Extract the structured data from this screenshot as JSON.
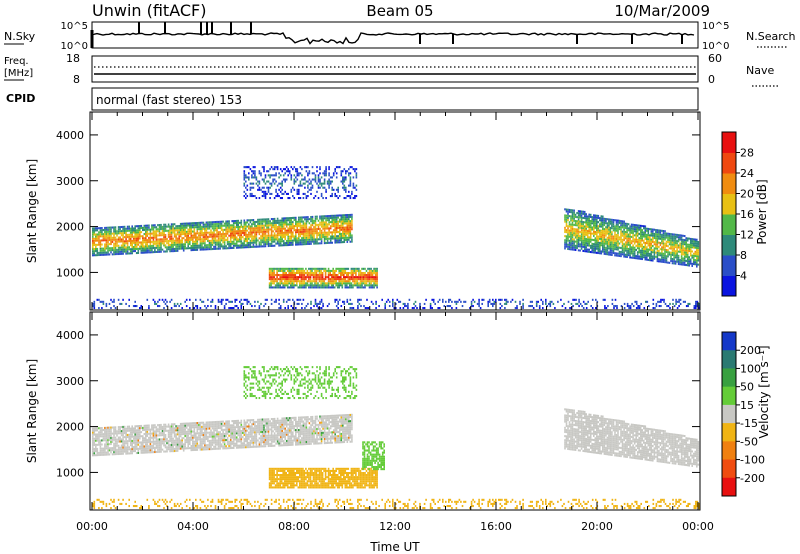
{
  "header": {
    "radar": "Unwin (fitACF)",
    "beam": "Beam 05",
    "date": "10/Mar/2009"
  },
  "noise_panel": {
    "left_label": "N.Sky",
    "right_label": "N.Search",
    "left_ticks": [
      "10^5",
      "10^0"
    ],
    "right_ticks": [
      "10^5",
      "10^0"
    ]
  },
  "freq_panel": {
    "left_label_1": "Freq.",
    "left_label_2": "[MHz]",
    "right_label": "Nave",
    "left_ticks": [
      "18",
      "8"
    ],
    "right_ticks": [
      "60",
      "0"
    ]
  },
  "cpid": {
    "label": "CPID",
    "text": "normal (fast stereo) 153"
  },
  "chart_data": [
    {
      "type": "heatmap",
      "quantity": "Power",
      "ylabel": "Slant Range [km]",
      "y_ticks": [
        "1000",
        "2000",
        "3000",
        "4000"
      ],
      "ylim": [
        180,
        4500
      ],
      "x_ticks": [
        "00:00",
        "04:00",
        "08:00",
        "12:00",
        "16:00",
        "20:00",
        "00:00"
      ],
      "xlim_hours": [
        0,
        24
      ],
      "colorbar_label": "Power [dB]",
      "colorbar_ticks": [
        "4",
        "8",
        "12",
        "16",
        "20",
        "24",
        "28"
      ],
      "colorbar_colors": [
        "#0a14e0",
        "#2a4ec8",
        "#2e8a7a",
        "#52b848",
        "#e8c014",
        "#f08c10",
        "#ef4810",
        "#e81010"
      ],
      "echo_regions": [
        {
          "name": "main band",
          "t_start": 0.0,
          "t_end": 10.3,
          "range_km_start": [
            1350,
            1950
          ],
          "range_km_end": [
            1650,
            2250
          ],
          "peak_db": 24
        },
        {
          "name": "near-range patch",
          "t_start": 7.0,
          "t_end": 11.3,
          "range_km": [
            650,
            1100
          ],
          "peak_db": 28
        },
        {
          "name": "high-range patch",
          "t_start": 6.0,
          "t_end": 10.5,
          "range_km": [
            2600,
            3300
          ],
          "peak_db": 8
        },
        {
          "name": "evening band",
          "t_start": 18.7,
          "t_end": 24.0,
          "range_km_start": [
            1500,
            2400
          ],
          "range_km_end": [
            1100,
            1700
          ],
          "peak_db": 20
        },
        {
          "name": "ground scatter",
          "t_start": 0.0,
          "t_end": 24.0,
          "range_km": [
            200,
            400
          ],
          "peak_db": 8
        }
      ]
    },
    {
      "type": "heatmap",
      "quantity": "Velocity",
      "ylabel": "Slant Range [km]",
      "y_ticks": [
        "1000",
        "2000",
        "3000",
        "4000"
      ],
      "ylim": [
        180,
        4500
      ],
      "x_ticks": [
        "00:00",
        "04:00",
        "08:00",
        "12:00",
        "16:00",
        "20:00",
        "00:00"
      ],
      "xlabel": "Time UT",
      "colorbar_label": "Velocity [m s⁻¹]",
      "colorbar_ticks": [
        "200",
        "100",
        "50",
        "15",
        "-15",
        "-50",
        "-100",
        "-200"
      ],
      "colorbar_colors": [
        "#1438c8",
        "#2a7a72",
        "#38a040",
        "#64cc38",
        "#c8c8c4",
        "#f0b414",
        "#f08010",
        "#f04c10",
        "#e81010"
      ],
      "echo_regions": [
        {
          "name": "main band",
          "t_start": 0.0,
          "t_end": 10.3,
          "velocity_ms": 0,
          "color_class": "ground"
        },
        {
          "name": "near-range patch",
          "t_start": 7.0,
          "t_end": 11.0,
          "velocity_ms": -40
        },
        {
          "name": "green patch",
          "t_start": 10.7,
          "t_end": 11.6,
          "velocity_ms": 40
        },
        {
          "name": "evening band",
          "t_start": 19.0,
          "t_end": 24.0,
          "velocity_ms": 0
        },
        {
          "name": "low-range scatter",
          "t_start": 0.0,
          "t_end": 24.0,
          "velocity_ms": -30
        }
      ]
    }
  ]
}
